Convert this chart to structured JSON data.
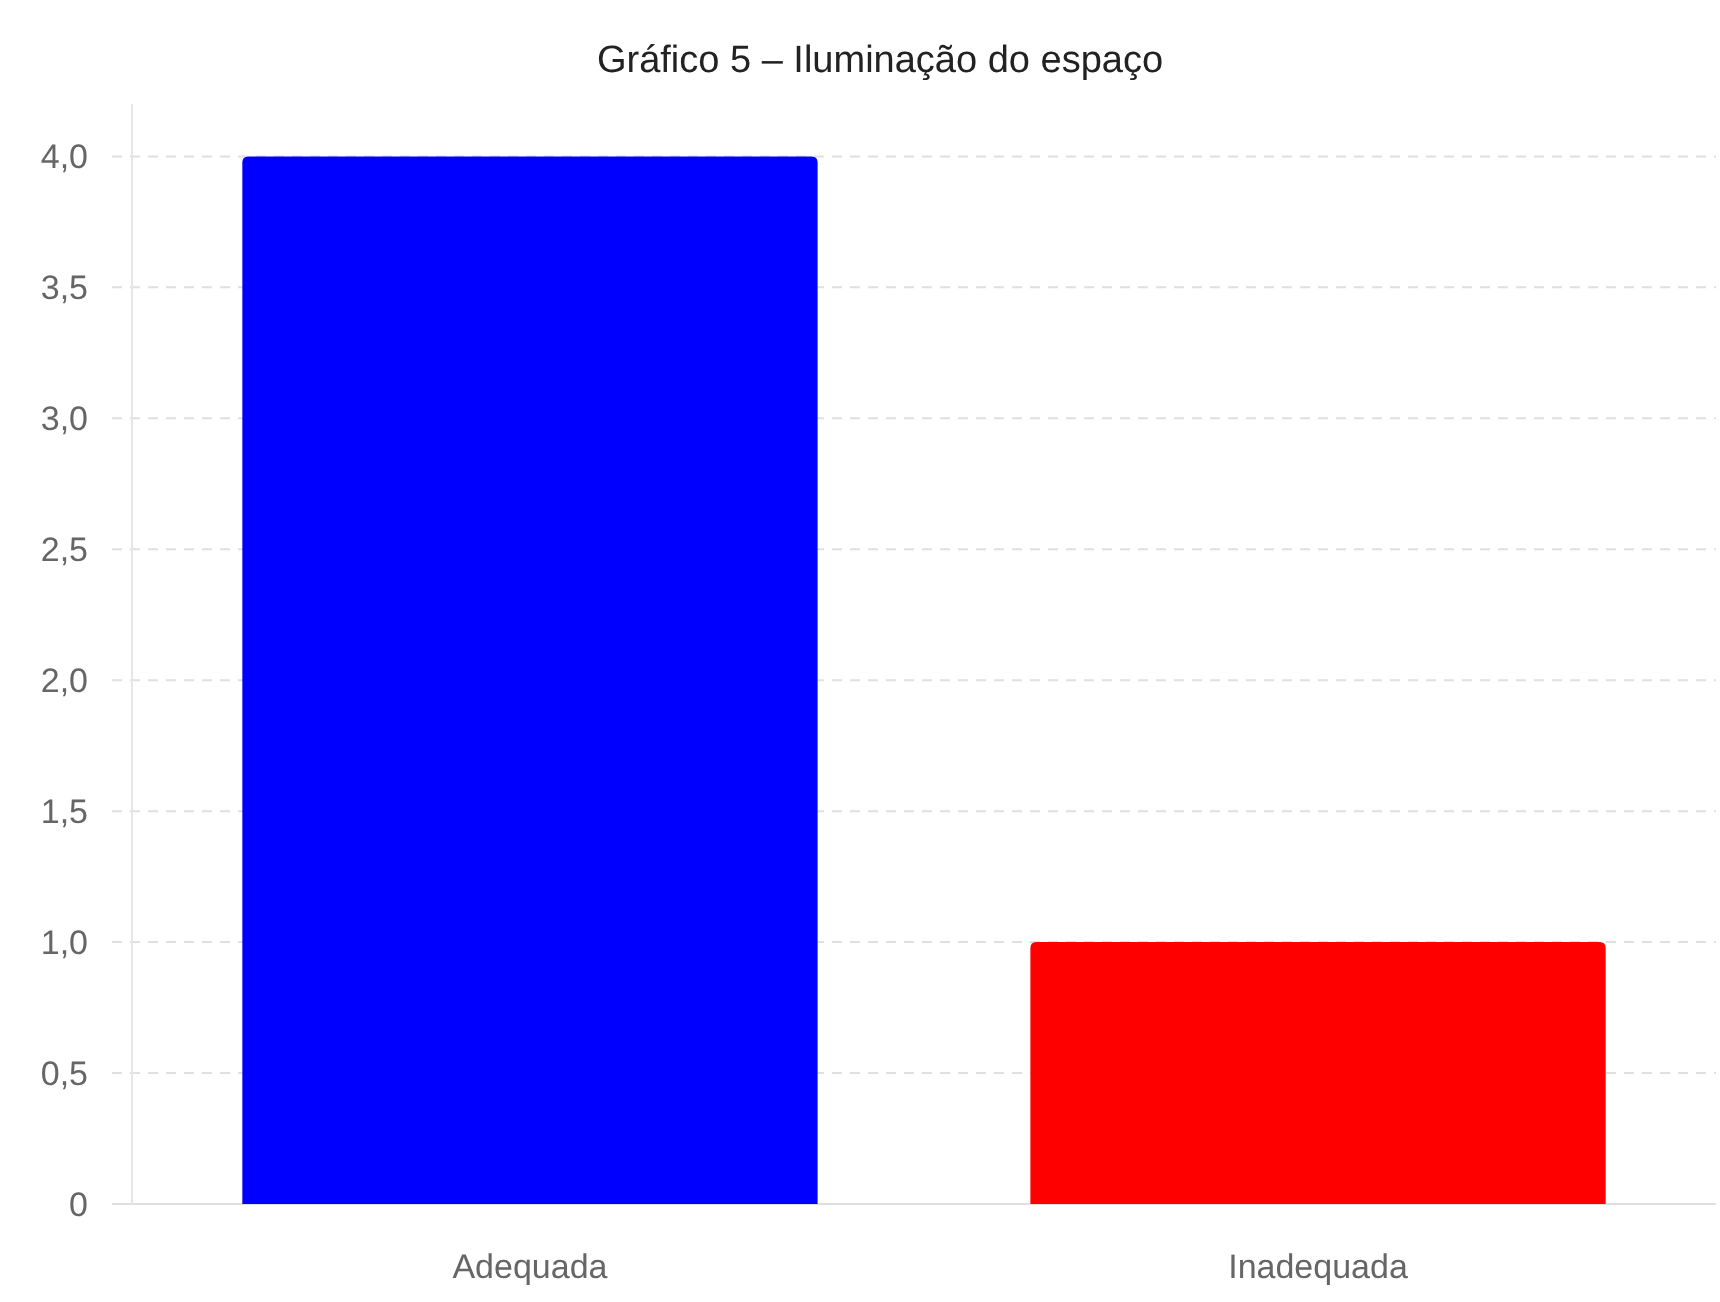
{
  "chart_data": {
    "type": "bar",
    "title": "Gráfico 5 – Iluminação do espaço",
    "categories": [
      "Adequada",
      "Inadequada"
    ],
    "values": [
      4,
      1
    ],
    "colors": [
      "#0000ff",
      "#ff0000"
    ],
    "ylim": [
      0,
      4.2
    ],
    "yticks": [
      0,
      {
        "value": 0.5,
        "label": "0,5"
      },
      {
        "value": 1,
        "label": "1,0"
      },
      {
        "value": 1.5,
        "label": "1,5"
      },
      {
        "value": 2,
        "label": "2,0"
      },
      {
        "value": 2.5,
        "label": "2,5"
      },
      {
        "value": 3,
        "label": "3,0"
      },
      {
        "value": 3.5,
        "label": "3,5"
      },
      {
        "value": 4,
        "label": "4,0"
      }
    ],
    "grid": "y"
  }
}
